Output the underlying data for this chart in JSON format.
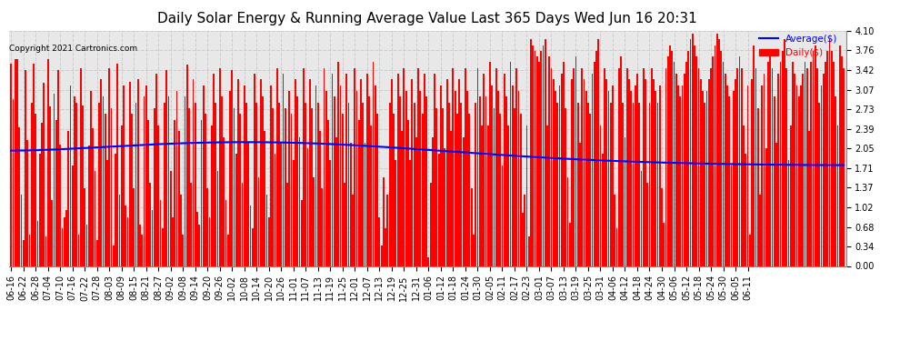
{
  "title": "Daily Solar Energy & Running Average Value Last 365 Days Wed Jun 16 20:31",
  "copyright": "Copyright 2021 Cartronics.com",
  "bar_color": "#ff0000",
  "avg_color": "#0000ff",
  "bg_color": "#ffffff",
  "plot_bg_color": "#e8e8e8",
  "grid_color": "#cccccc",
  "ylim": [
    0.0,
    4.1
  ],
  "yticks": [
    0.0,
    0.34,
    0.68,
    1.02,
    1.37,
    1.71,
    2.05,
    2.39,
    2.73,
    3.07,
    3.42,
    3.76,
    4.1
  ],
  "legend_avg_label": "Average($)",
  "legend_daily_label": "Daily($)",
  "title_fontsize": 11,
  "tick_fontsize": 7,
  "x_labels": [
    "06-16",
    "06-22",
    "06-28",
    "07-04",
    "07-10",
    "07-16",
    "07-22",
    "07-28",
    "08-03",
    "08-09",
    "08-15",
    "08-21",
    "08-27",
    "09-02",
    "09-08",
    "09-14",
    "09-20",
    "09-26",
    "10-02",
    "10-08",
    "10-14",
    "10-20",
    "10-26",
    "11-01",
    "11-07",
    "11-13",
    "11-19",
    "11-25",
    "12-01",
    "12-07",
    "12-13",
    "12-19",
    "12-25",
    "12-31",
    "01-06",
    "01-12",
    "01-18",
    "01-24",
    "01-30",
    "02-05",
    "02-11",
    "02-17",
    "02-23",
    "03-01",
    "03-07",
    "03-13",
    "03-19",
    "03-25",
    "03-31",
    "04-06",
    "04-12",
    "04-18",
    "04-24",
    "04-30",
    "05-06",
    "05-12",
    "05-18",
    "05-24",
    "05-30",
    "06-05",
    "06-11"
  ],
  "daily_values": [
    3.52,
    2.91,
    3.61,
    3.61,
    2.42,
    1.25,
    0.45,
    3.41,
    2.2,
    0.55,
    2.85,
    3.52,
    2.65,
    0.78,
    1.95,
    2.5,
    3.2,
    0.52,
    3.61,
    2.78,
    1.15,
    3.01,
    2.55,
    3.42,
    2.11,
    0.65,
    0.85,
    0.98,
    2.35,
    3.15,
    1.75,
    2.95,
    2.85,
    0.55,
    3.45,
    2.8,
    1.35,
    0.72,
    2.1,
    3.05,
    2.4,
    1.65,
    0.45,
    2.85,
    3.25,
    2.95,
    2.65,
    1.85,
    3.45,
    2.75,
    0.35,
    1.95,
    3.52,
    1.25,
    2.45,
    3.15,
    1.05,
    0.85,
    3.21,
    2.65,
    1.35,
    2.85,
    3.25,
    0.72,
    0.55,
    2.95,
    3.15,
    2.55,
    1.45,
    0.98,
    2.75,
    3.35,
    2.45,
    1.15,
    0.65,
    2.85,
    3.42,
    2.95,
    1.65,
    0.85,
    2.55,
    3.05,
    2.35,
    1.25,
    0.55,
    2.95,
    3.51,
    2.75,
    1.45,
    3.25,
    2.85,
    0.95,
    0.72,
    2.55,
    3.15,
    2.65,
    1.35,
    0.85,
    2.45,
    3.35,
    2.85,
    1.65,
    3.45,
    2.95,
    2.25,
    1.15,
    0.55,
    3.05,
    3.42,
    2.75,
    1.95,
    3.25,
    2.65,
    1.45,
    3.15,
    2.85,
    2.15,
    1.05,
    0.65,
    3.35,
    2.85,
    1.55,
    3.25,
    2.95,
    2.35,
    1.25,
    0.85,
    3.15,
    2.75,
    1.95,
    3.45,
    2.85,
    2.15,
    3.35,
    2.75,
    1.45,
    3.05,
    2.65,
    1.85,
    3.25,
    2.95,
    2.25,
    1.15,
    3.45,
    2.85,
    2.05,
    3.25,
    2.75,
    1.55,
    3.15,
    2.85,
    2.35,
    1.35,
    3.45,
    3.05,
    2.55,
    1.85,
    3.35,
    2.95,
    2.25,
    3.55,
    3.15,
    2.65,
    1.45,
    3.35,
    2.85,
    2.15,
    1.25,
    3.45,
    3.05,
    2.55,
    3.25,
    2.85,
    2.15,
    3.35,
    2.95,
    2.45,
    3.55,
    3.15,
    2.65,
    0.85,
    0.35,
    1.55,
    0.65,
    1.25,
    2.85,
    3.25,
    2.65,
    1.85,
    3.35,
    2.95,
    2.35,
    3.45,
    3.05,
    2.55,
    1.85,
    3.25,
    2.85,
    2.25,
    3.45,
    3.05,
    2.65,
    3.35,
    2.95,
    0.15,
    1.45,
    2.25,
    3.35,
    2.75,
    1.95,
    3.15,
    2.75,
    2.05,
    3.25,
    2.85,
    2.35,
    3.45,
    3.05,
    2.65,
    3.25,
    2.85,
    2.25,
    3.45,
    3.05,
    2.65,
    1.35,
    0.55,
    2.85,
    3.45,
    2.95,
    2.45,
    3.35,
    2.95,
    2.45,
    3.55,
    3.15,
    2.75,
    3.45,
    3.05,
    2.65,
    1.75,
    3.35,
    2.95,
    2.45,
    3.55,
    3.15,
    2.75,
    3.45,
    3.05,
    2.65,
    0.92,
    1.25,
    2.45,
    0.52,
    3.95,
    3.85,
    3.75,
    3.65,
    3.55,
    3.75,
    3.85,
    3.95,
    2.45,
    3.65,
    3.45,
    3.25,
    3.05,
    2.85,
    3.15,
    3.35,
    3.55,
    2.75,
    1.55,
    0.75,
    3.25,
    3.45,
    3.65,
    2.85,
    2.15,
    3.45,
    3.25,
    3.05,
    2.85,
    2.65,
    3.35,
    3.55,
    3.75,
    3.95,
    2.45,
    1.95,
    3.45,
    3.25,
    3.05,
    2.85,
    3.15,
    1.25,
    0.65,
    3.45,
    3.65,
    2.85,
    2.25,
    3.45,
    3.25,
    3.05,
    2.85,
    3.15,
    3.35,
    2.85,
    1.65,
    3.45,
    3.25,
    1.45,
    2.85,
    3.45,
    3.25,
    3.05,
    2.85,
    3.15,
    1.35,
    0.75,
    3.45,
    3.65,
    3.85,
    3.75,
    3.55,
    3.35,
    3.15,
    2.95,
    3.15,
    3.35,
    3.55,
    3.75,
    3.95,
    4.05,
    3.85,
    3.65,
    3.45,
    3.25,
    3.05,
    2.85,
    3.05,
    3.25,
    3.45,
    3.65,
    3.85,
    4.05,
    3.95,
    3.75,
    3.55,
    3.35,
    3.15,
    2.95,
    1.75,
    3.05,
    3.25,
    3.45,
    3.65,
    3.45,
    2.45,
    1.95,
    3.15,
    0.55,
    3.25,
    3.85,
    3.45,
    2.75,
    1.25,
    3.15,
    3.35,
    2.05,
    3.55,
    3.75,
    3.45,
    2.95,
    2.15,
    3.35,
    3.55,
    3.75,
    3.95,
    3.45,
    1.85,
    2.45,
    3.55,
    3.35,
    3.15,
    2.95,
    3.15,
    3.35,
    3.55,
    3.45,
    2.35,
    3.55,
    3.75,
    3.85,
    3.45,
    2.85,
    3.15,
    3.35,
    3.55,
    3.75,
    3.95,
    3.75,
    3.55,
    2.95,
    2.45,
    3.85,
    3.65,
    3.45
  ]
}
